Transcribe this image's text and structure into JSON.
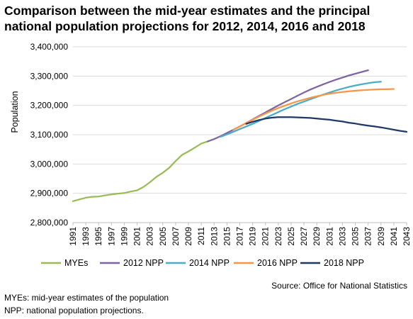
{
  "title": "Comparison between the mid-year estimates and the principal national population projections for 2012, 2014, 2016 and 2018",
  "source": "Source: Office for National Statistics",
  "notes": [
    "MYEs: mid-year estimates of the population",
    "NPP: national population projections."
  ],
  "chart_data": {
    "type": "line",
    "title": "Comparison between the mid-year estimates and the principal national population projections for 2012, 2014, 2016 and 2018",
    "xlabel": "",
    "ylabel": "Population",
    "ylim": [
      2800000,
      3400000
    ],
    "yticks": [
      2800000,
      2900000,
      3000000,
      3100000,
      3200000,
      3300000,
      3400000
    ],
    "ytick_labels": [
      "2,800,000",
      "2,900,000",
      "3,000,000",
      "3,100,000",
      "3,200,000",
      "3,300,000",
      "3,400,000"
    ],
    "xlim": [
      1991,
      2043
    ],
    "xticks": [
      "1991",
      "1993",
      "1995",
      "1997",
      "1999",
      "2001",
      "2003",
      "2005",
      "2007",
      "2009",
      "2011",
      "2013",
      "2015",
      "2017",
      "2019",
      "2021",
      "2023",
      "2025",
      "2027",
      "2029",
      "2031",
      "2033",
      "2035",
      "2037",
      "2039",
      "2041",
      "2043"
    ],
    "grid": true,
    "legend_position": "bottom",
    "series": [
      {
        "name": "MYEs",
        "color": "#9bbb59",
        "x": [
          1991,
          1992,
          1993,
          1994,
          1995,
          1996,
          1997,
          1998,
          1999,
          2000,
          2001,
          2002,
          2003,
          2004,
          2005,
          2006,
          2007,
          2008,
          2009,
          2010,
          2011,
          2012
        ],
        "values": [
          2873000,
          2879000,
          2885000,
          2888000,
          2889000,
          2893000,
          2896000,
          2899000,
          2901000,
          2906000,
          2910000,
          2922000,
          2938000,
          2956000,
          2970000,
          2987000,
          3010000,
          3031000,
          3043000,
          3056000,
          3070000,
          3077000
        ]
      },
      {
        "name": "2012 NPP",
        "color": "#8064a2",
        "x": [
          2012,
          2013,
          2014,
          2015,
          2016,
          2017,
          2018,
          2019,
          2020,
          2021,
          2022,
          2023,
          2024,
          2025,
          2026,
          2027,
          2028,
          2029,
          2030,
          2031,
          2032,
          2033,
          2034,
          2035,
          2036,
          2037
        ],
        "values": [
          3077000,
          3085000,
          3095000,
          3106000,
          3117000,
          3128000,
          3140000,
          3152000,
          3164000,
          3176000,
          3188000,
          3200000,
          3211000,
          3222000,
          3233000,
          3244000,
          3254000,
          3263000,
          3272000,
          3280000,
          3288000,
          3295000,
          3302000,
          3308000,
          3314000,
          3320000
        ]
      },
      {
        "name": "2014 NPP",
        "color": "#4bacc6",
        "x": [
          2014,
          2015,
          2016,
          2017,
          2018,
          2019,
          2020,
          2021,
          2022,
          2023,
          2024,
          2025,
          2026,
          2027,
          2028,
          2029,
          2030,
          2031,
          2032,
          2033,
          2034,
          2035,
          2036,
          2037,
          2038,
          2039
        ],
        "values": [
          3093000,
          3101000,
          3110000,
          3119000,
          3128000,
          3137000,
          3147000,
          3157000,
          3167000,
          3177000,
          3187000,
          3196000,
          3205000,
          3213000,
          3221000,
          3229000,
          3237000,
          3244000,
          3251000,
          3257000,
          3263000,
          3268000,
          3272000,
          3276000,
          3279000,
          3281000
        ]
      },
      {
        "name": "2016 NPP",
        "color": "#f79646",
        "x": [
          2016,
          2017,
          2018,
          2019,
          2020,
          2021,
          2022,
          2023,
          2024,
          2025,
          2026,
          2027,
          2028,
          2029,
          2030,
          2031,
          2032,
          2033,
          2034,
          2035,
          2036,
          2037,
          2038,
          2039,
          2040,
          2041
        ],
        "values": [
          3117000,
          3128000,
          3140000,
          3151000,
          3162000,
          3172000,
          3182000,
          3191000,
          3199000,
          3207000,
          3214000,
          3220000,
          3226000,
          3231000,
          3236000,
          3240000,
          3243000,
          3246000,
          3248000,
          3250000,
          3252000,
          3253000,
          3254000,
          3255000,
          3255000,
          3256000
        ]
      },
      {
        "name": "2018 NPP",
        "color": "#1f3864",
        "x": [
          2018,
          2019,
          2020,
          2021,
          2022,
          2023,
          2024,
          2025,
          2026,
          2027,
          2028,
          2029,
          2030,
          2031,
          2032,
          2033,
          2034,
          2035,
          2036,
          2037,
          2038,
          2039,
          2040,
          2041,
          2042,
          2043
        ],
        "values": [
          3137000,
          3144000,
          3150000,
          3155000,
          3158000,
          3160000,
          3160000,
          3160000,
          3159000,
          3158000,
          3157000,
          3155000,
          3153000,
          3151000,
          3148000,
          3145000,
          3141000,
          3138000,
          3134000,
          3131000,
          3128000,
          3125000,
          3121000,
          3117000,
          3113000,
          3110000
        ]
      }
    ]
  }
}
